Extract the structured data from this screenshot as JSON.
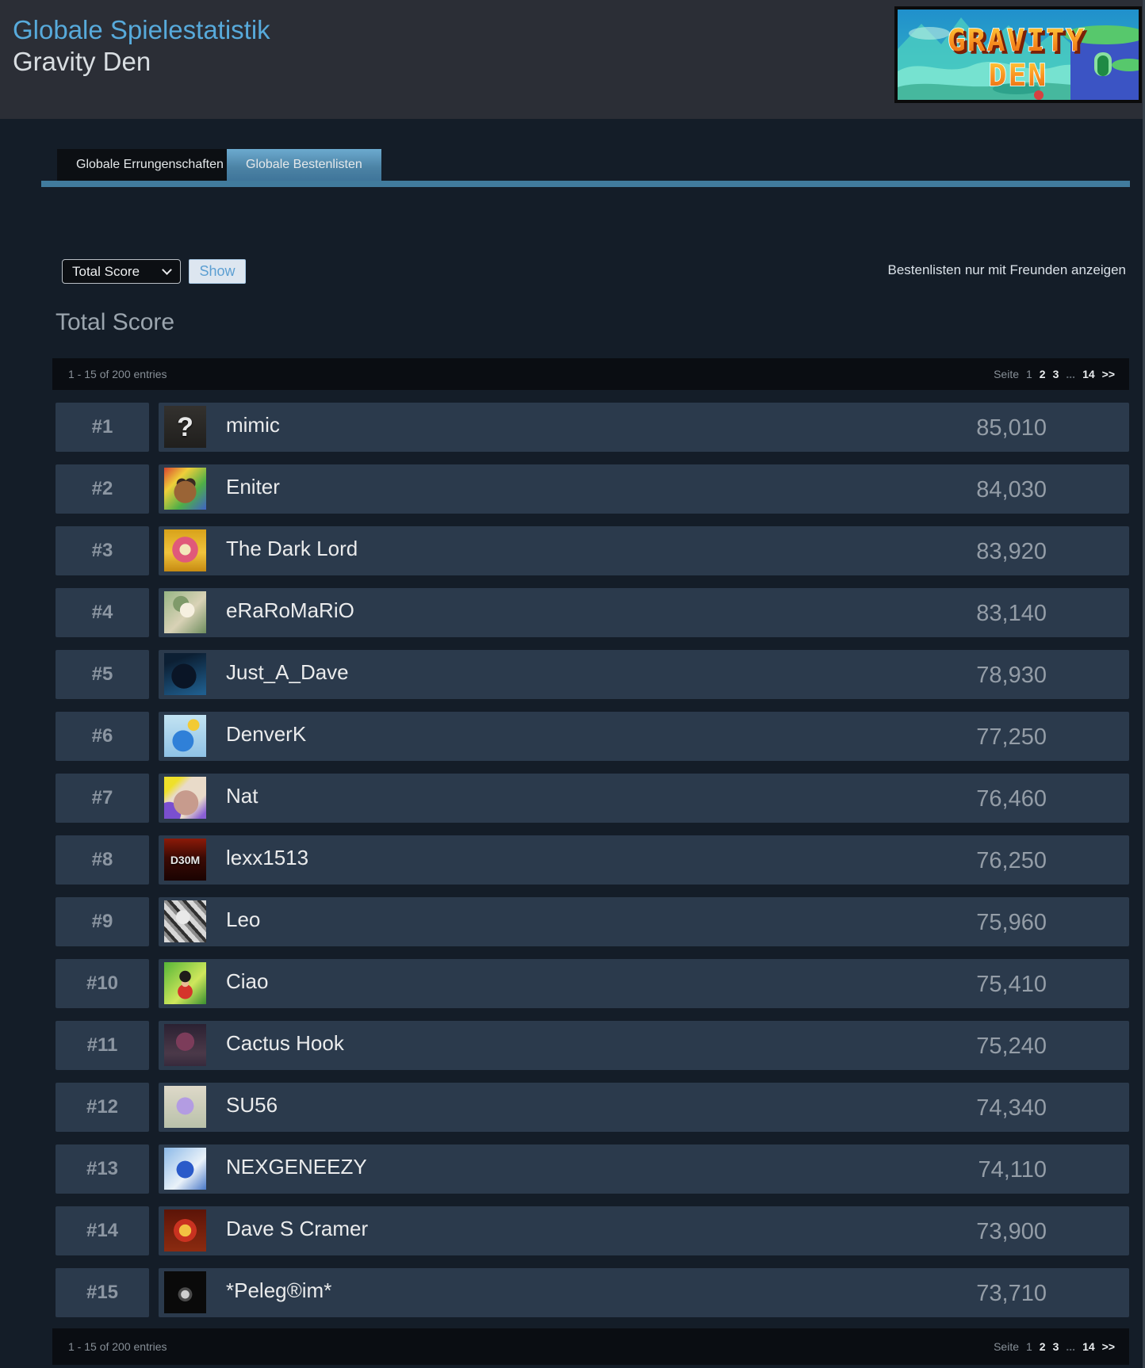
{
  "header": {
    "stats_link": "Globale Spielestatistik",
    "game_title": "Gravity Den",
    "banner": {
      "line1": "GRAVITY",
      "line2": "DEN"
    }
  },
  "tabs": {
    "achievements": "Globale Errungenschaften",
    "leaderboards": "Globale Bestenlisten"
  },
  "filter": {
    "selected_option": "Total Score",
    "show_button": "Show",
    "friends_link": "Bestenlisten nur mit Freunden anzeigen"
  },
  "leaderboard": {
    "heading": "Total Score",
    "entries_summary": "1 - 15 of 200 entries",
    "pagination": {
      "seite_label": "Seite",
      "current": "1",
      "page2": "2",
      "page3": "3",
      "ellipsis": "...",
      "last": "14",
      "next": ">>"
    },
    "rows": [
      {
        "rank": "#1",
        "name": "mimic",
        "score": "85,010",
        "avatar": {
          "desc": "question-mark-avatar",
          "glyph": "?",
          "glyph_size": 34,
          "bg": "linear-gradient(180deg,#33312e,#201f1d)"
        }
      },
      {
        "rank": "#2",
        "name": "Eniter",
        "score": "84,030",
        "avatar": {
          "desc": "rainbow-bat-creature-avatar",
          "glyph": "",
          "bg": "radial-gradient(circle at 50% 58%, #9a6436 0 34%, rgba(0,0,0,0) 35%), radial-gradient(circle at 42% 38%, #3a2a20 0 14%, rgba(0,0,0,0) 15%), radial-gradient(circle at 62% 38%, #3a2a20 0 14%, rgba(0,0,0,0) 15%), linear-gradient(135deg,#d8452f 0%,#efcf3a 30%,#4fae47 65%,#3f63c6 100%)"
        }
      },
      {
        "rank": "#3",
        "name": "The Dark Lord",
        "score": "83,920",
        "avatar": {
          "desc": "gold-royal-crown-emblem-avatar",
          "glyph": "",
          "bg": "radial-gradient(circle at 50% 48%, #f3e8bb 0 18%, #e0597a 19% 42%, rgba(0,0,0,0) 43%), linear-gradient(180deg,#d8a21a,#f1c43c 55%,#c68a12)"
        }
      },
      {
        "rank": "#4",
        "name": "eRaRoMaRiO",
        "score": "83,140",
        "avatar": {
          "desc": "green-haired-anime-girl-avatar",
          "glyph": "",
          "bg": "radial-gradient(circle at 55% 45%, #f6f0e0 0 22%, rgba(0,0,0,0) 23%), radial-gradient(circle at 40% 30%, #7f9a6a 0 20%, rgba(0,0,0,0) 21%), linear-gradient(135deg,#97b584,#d9d2b6 55%,#6e8d5e)"
        }
      },
      {
        "rank": "#5",
        "name": "Just_A_Dave",
        "score": "78,930",
        "avatar": {
          "desc": "dark-silhouette-glowing-eyes-avatar",
          "glyph": "",
          "bg": "radial-gradient(circle at 47% 55%, #0a1526 0 38%, rgba(0,0,0,0) 39%), linear-gradient(160deg,#0c1f33 20%,#1f5e8e 95%)"
        }
      },
      {
        "rank": "#6",
        "name": "DenverK",
        "score": "77,250",
        "avatar": {
          "desc": "blue-fish-creature-crown-avatar",
          "glyph": "",
          "bg": "radial-gradient(circle at 45% 62%, #2f80d8 0 30%, rgba(0,0,0,0) 31%), radial-gradient(circle at 70% 24%, #f2ca34 0 13%, rgba(0,0,0,0) 14%), linear-gradient(180deg,#c2e3f2,#8fc2e6)"
        }
      },
      {
        "rank": "#7",
        "name": "Nat",
        "score": "76,460",
        "avatar": {
          "desc": "pink-haired-anime-girl-avatar",
          "glyph": "",
          "bg": "radial-gradient(circle at 52% 62%, #c79b8d 0 36%, rgba(0,0,0,0) 37%), radial-gradient(circle at 12% 88%, #7a4fd0 0 22%, rgba(0,0,0,0) 23%), linear-gradient(135deg,#efe02a 0 20%, #e9dbc9 35% 70%, #8a5fd6 92%)"
        }
      },
      {
        "rank": "#8",
        "name": "lexx1513",
        "score": "76,250",
        "avatar": {
          "desc": "doom-d30m-logo-avatar",
          "glyph": "D30M",
          "glyph_size": 14,
          "bg": "linear-gradient(180deg,#8c1a08 0%,#3c0a04 45%,#1a0302 100%)"
        }
      },
      {
        "rank": "#9",
        "name": "Leo",
        "score": "75,960",
        "avatar": {
          "desc": "black-white-sketch-avatar",
          "glyph": "",
          "bg": "radial-gradient(circle at 45% 40%, #e9e9e9 0 20%, rgba(0,0,0,0) 21%), repeating-linear-gradient(48deg,#d8d8d8 0 6px,#8e8e8e 6px 10px,#303030 10px 14px)"
        }
      },
      {
        "rank": "#10",
        "name": "Ciao",
        "score": "75,410",
        "avatar": {
          "desc": "luffy-anime-avatar",
          "glyph": "",
          "bg": "radial-gradient(circle at 50% 34%, #1e1c1a 0 16%, rgba(0,0,0,0) 17%), radial-gradient(circle at 50% 50%, #e8bc94 0 12%, rgba(0,0,0,0) 13%), radial-gradient(circle at 50% 70%, #d5342b 0 20%, rgba(0,0,0,0) 21%), linear-gradient(135deg,#56b637,#cfe75c 60%,#3a9030)"
        }
      },
      {
        "rank": "#11",
        "name": "Cactus Hook",
        "score": "75,240",
        "avatar": {
          "desc": "dark-purple-haired-figure-avatar",
          "glyph": "",
          "bg": "radial-gradient(circle at 50% 42%, #7c3c5a 0 28%, rgba(0,0,0,0) 29%), linear-gradient(180deg,#2b2132,#4b3949 70%,#372a3c)"
        }
      },
      {
        "rank": "#12",
        "name": "SU56",
        "score": "74,340",
        "avatar": {
          "desc": "purple-haired-chibi-avatar",
          "glyph": "",
          "bg": "radial-gradient(circle at 50% 48%, #b39ce2 0 28%, rgba(0,0,0,0) 29%), linear-gradient(180deg,#ded9c9,#b9c1aa)"
        }
      },
      {
        "rank": "#13",
        "name": "NEXGENEEZY",
        "score": "74,110",
        "avatar": {
          "desc": "blue-sonic-character-avatar",
          "glyph": "",
          "bg": "radial-gradient(circle at 50% 52%, #2a5ac9 0 28%, rgba(0,0,0,0) 29%), linear-gradient(135deg,#8cb9e8,#eaf2f9 60%,#4a79c8)"
        }
      },
      {
        "rank": "#14",
        "name": "Dave S Cramer",
        "score": "73,900",
        "avatar": {
          "desc": "gold-red-circular-emblem-avatar",
          "glyph": "",
          "bg": "radial-gradient(circle at 50% 50%, #f2c242 0 20%, #c93220 21% 38%, rgba(0,0,0,0) 39%), linear-gradient(180deg,#5c1408,#8c2b10)"
        }
      },
      {
        "rank": "#15",
        "name": "*Peleg®im*",
        "score": "73,710",
        "avatar": {
          "desc": "dark-small-white-creature-avatar",
          "glyph": "",
          "bg": "radial-gradient(circle at 50% 55%, #cfcfcf 0 13%, #4a4a4a 14% 22%, rgba(0,0,0,0) 23%), #0a0a0a"
        }
      }
    ]
  },
  "colors": {
    "accent_blue": "#57aadb",
    "tab_active": "#5a97bc",
    "underline": "#417b9d",
    "row_bg": "#2b3a4c",
    "page_bg": "#141d28",
    "header_bg": "#2b2e36",
    "bar_bg": "#0a0d12",
    "banner_orange": "#f08018"
  }
}
